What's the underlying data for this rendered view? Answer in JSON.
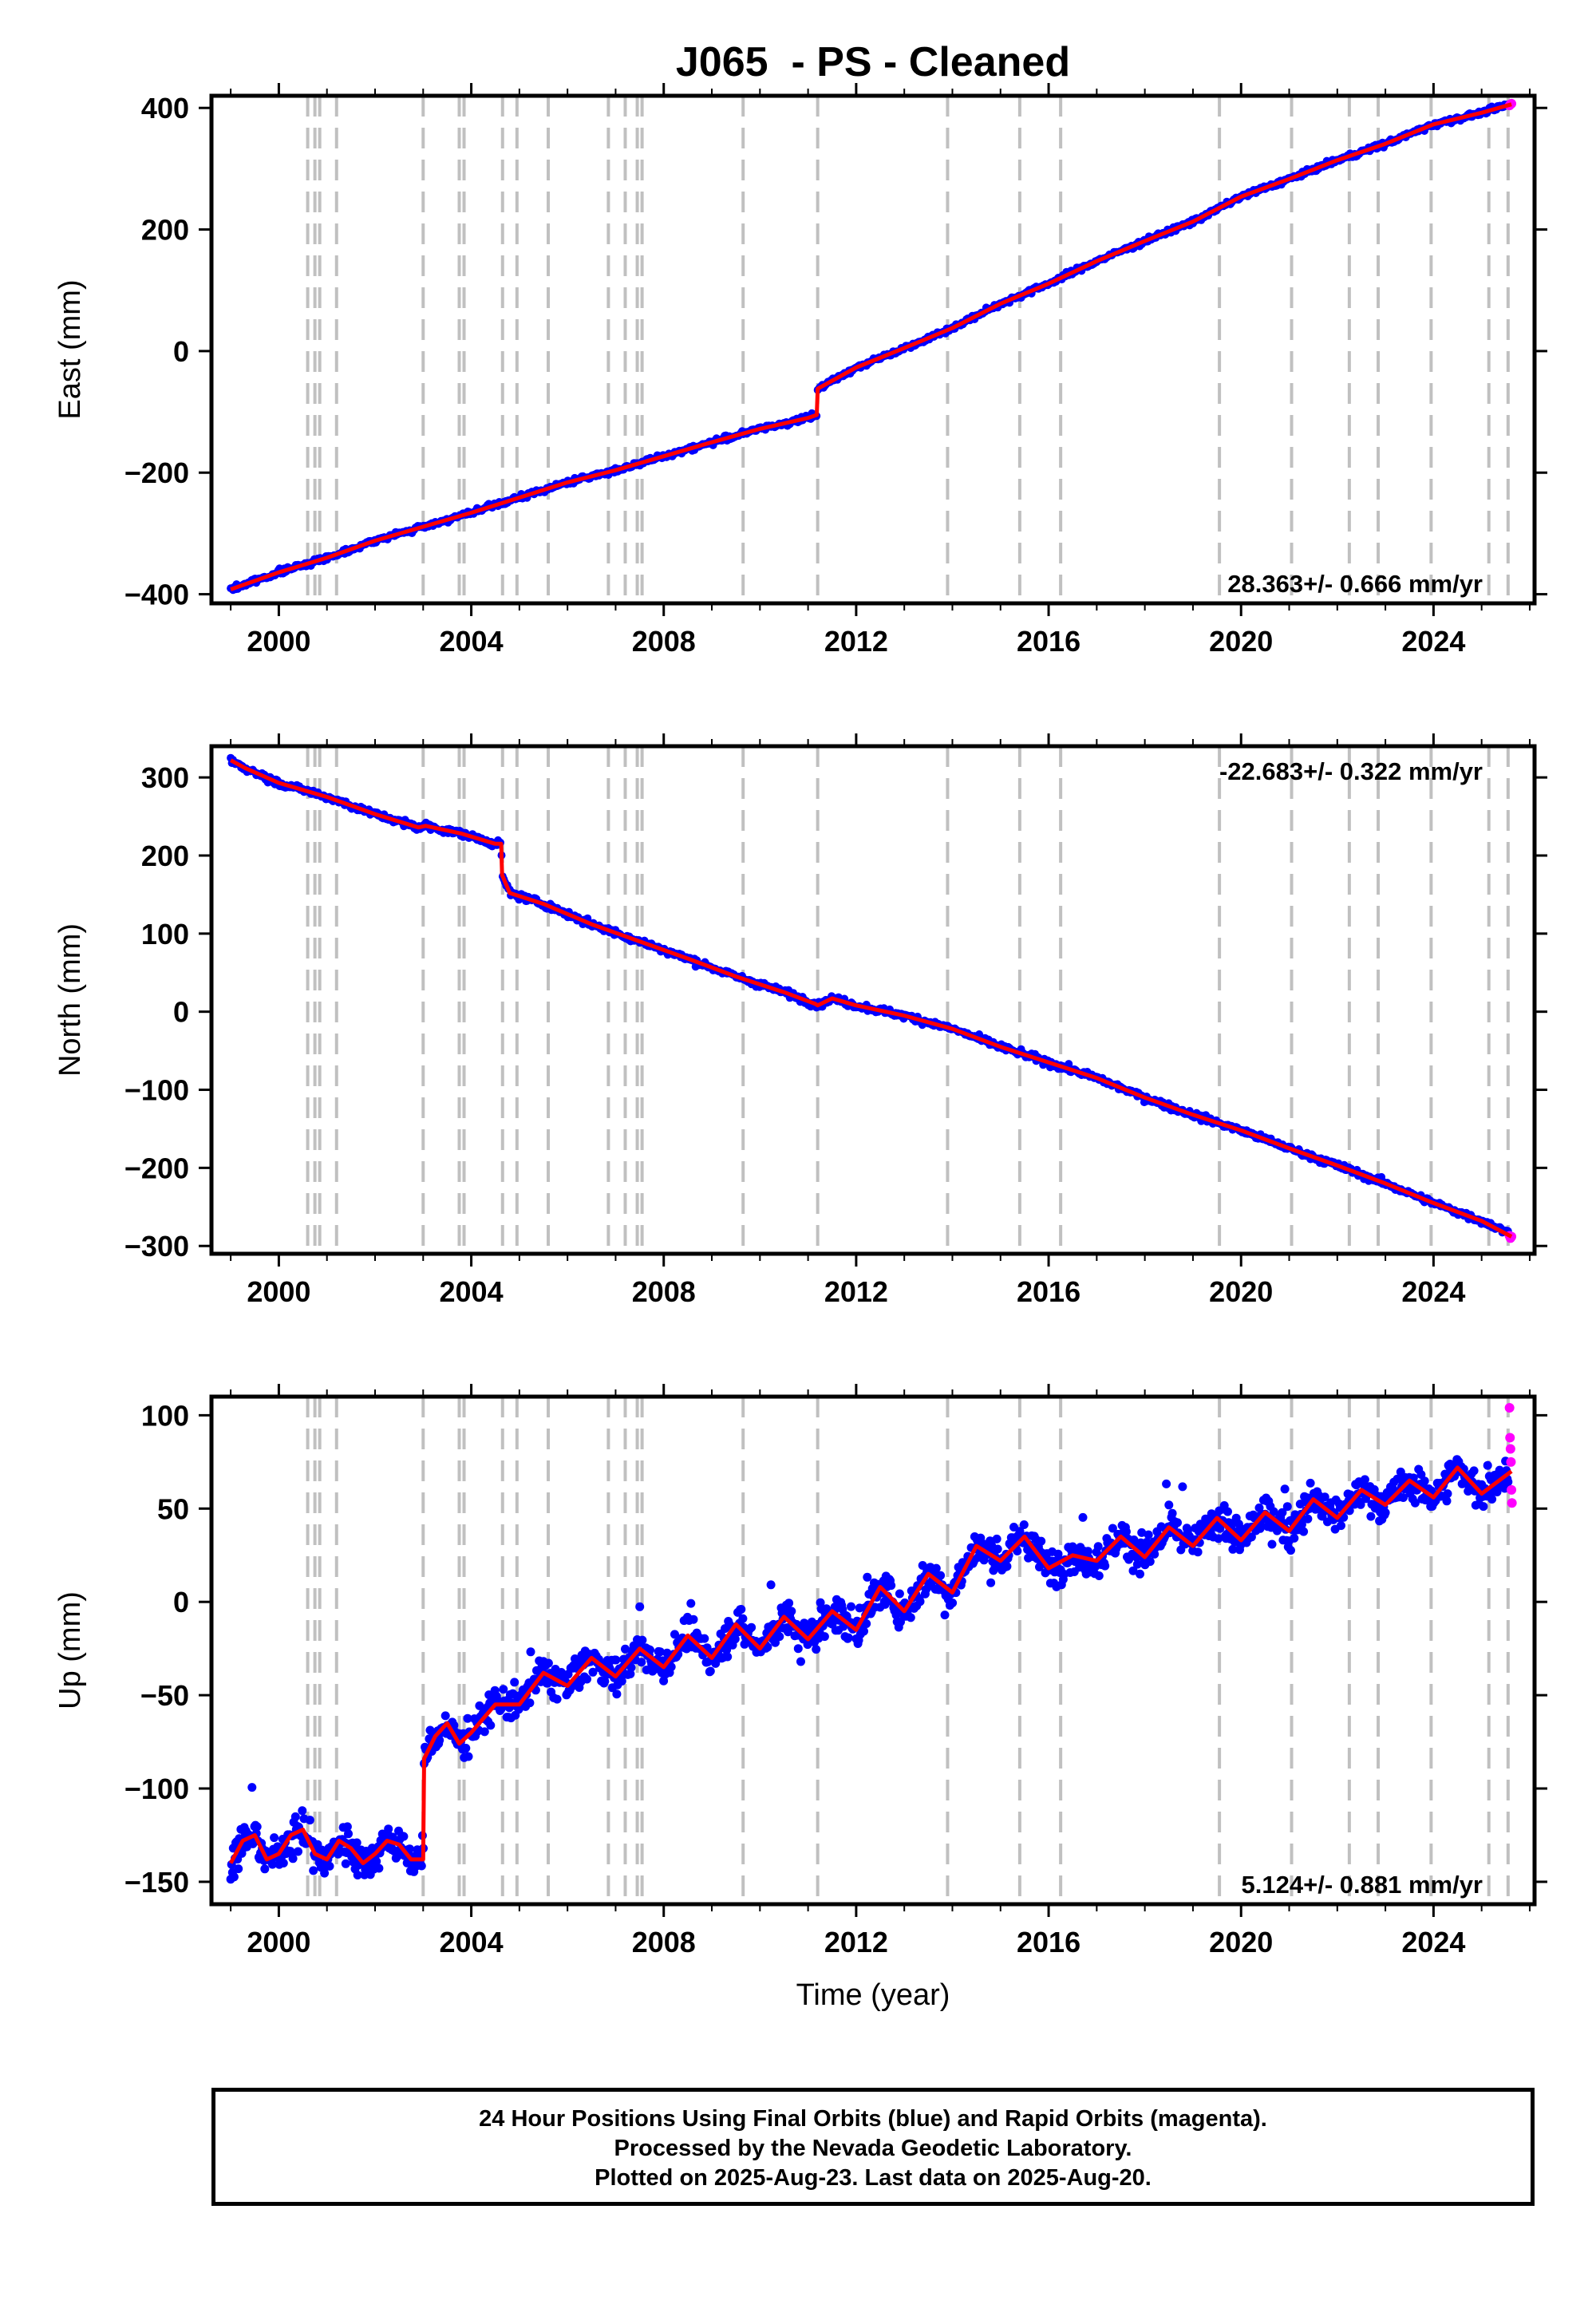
{
  "title": "J065  - PS - Cleaned",
  "xlabel": "Time (year)",
  "footer": {
    "line1": "24 Hour Positions Using Final Orbits (blue) and Rapid Orbits (magenta).",
    "line2": "Processed by the Nevada Geodetic Laboratory.",
    "line3": "Plotted on 2025-Aug-23. Last data on 2025-Aug-20."
  },
  "colors": {
    "final": "#0000ff",
    "rapid": "#ff00ff",
    "model": "#ff0000",
    "events": "#c0c0c0"
  },
  "chart_data": [
    {
      "type": "scatter",
      "component": "east",
      "ylabel": "East (mm)",
      "rate": "28.363+/- 0.666 mm/yr",
      "rate_position": "bottom-right",
      "xlim": [
        1998.6,
        2026.1
      ],
      "ylim": [
        -415,
        420
      ],
      "xticks": [
        2000,
        2004,
        2008,
        2012,
        2016,
        2020,
        2024
      ],
      "yticks": [
        -400,
        -200,
        0,
        200,
        400
      ],
      "ytick_labels": [
        "−400",
        "−200",
        "0",
        "200",
        "400"
      ],
      "series": [
        {
          "role": "final",
          "x": [
            1999.0,
            2000.0,
            2001.0,
            2002.0,
            2003.0,
            2004.0,
            2005.0,
            2006.0,
            2007.0,
            2008.0,
            2009.0,
            2010.0,
            2011.0,
            2011.18,
            2011.2,
            2012.0,
            2013.0,
            2014.0,
            2015.0,
            2016.0,
            2017.0,
            2018.0,
            2019.0,
            2020.0,
            2021.0,
            2022.0,
            2023.0,
            2024.0,
            2025.0,
            2025.55
          ],
          "y": [
            -392,
            -364,
            -340,
            -312,
            -289,
            -266,
            -241,
            -216,
            -196,
            -173,
            -150,
            -128,
            -110,
            -105,
            -62,
            -27,
            5,
            38,
            78,
            111,
            148,
            181,
            213,
            254,
            283,
            314,
            341,
            373,
            392,
            405
          ]
        },
        {
          "role": "rapid",
          "x": [
            2025.58,
            2025.6,
            2025.62
          ],
          "y": [
            404,
            406,
            407
          ]
        }
      ],
      "model": {
        "x": [
          1999.0,
          2000.0,
          2001.0,
          2002.0,
          2003.0,
          2004.0,
          2005.0,
          2006.0,
          2007.0,
          2008.0,
          2009.0,
          2010.0,
          2011.0,
          2011.18,
          2011.2,
          2012.0,
          2013.0,
          2014.0,
          2015.0,
          2016.0,
          2017.0,
          2018.0,
          2019.0,
          2020.0,
          2021.0,
          2022.0,
          2023.0,
          2024.0,
          2025.0,
          2025.62
        ],
        "y": [
          -392,
          -364,
          -340,
          -312,
          -289,
          -266,
          -241,
          -216,
          -196,
          -173,
          -150,
          -128,
          -110,
          -105,
          -62,
          -27,
          5,
          38,
          78,
          111,
          148,
          181,
          213,
          254,
          283,
          314,
          341,
          373,
          392,
          406
        ]
      }
    },
    {
      "type": "scatter",
      "component": "north",
      "ylabel": "North (mm)",
      "rate": "-22.683+/- 0.322 mm/yr",
      "rate_position": "top-right",
      "xlim": [
        1998.6,
        2026.1
      ],
      "ylim": [
        -310,
        340
      ],
      "xticks": [
        2000,
        2004,
        2008,
        2012,
        2016,
        2020,
        2024
      ],
      "yticks": [
        -300,
        -200,
        -100,
        0,
        100,
        200,
        300
      ],
      "ytick_labels": [
        "−300",
        "−200",
        "−100",
        "0",
        "100",
        "200",
        "300"
      ],
      "series": [
        {
          "role": "final",
          "x": [
            1999.0,
            1999.3,
            2000.0,
            2001.0,
            2002.0,
            2002.9,
            2003.05,
            2003.8,
            2004.5,
            2004.62,
            2004.64,
            2004.8,
            2005.5,
            2006.5,
            2007.5,
            2008.5,
            2009.5,
            2010.5,
            2011.15,
            2011.2,
            2011.5,
            2012.0,
            2013.0,
            2014.0,
            2015.0,
            2016.0,
            2017.0,
            2018.0,
            2019.0,
            2020.0,
            2021.0,
            2022.0,
            2023.0,
            2024.0,
            2025.0,
            2025.55
          ],
          "y": [
            322,
            312,
            293,
            275,
            253,
            236,
            238,
            228,
            215,
            215,
            175,
            152,
            138,
            112,
            90,
            68,
            45,
            25,
            10,
            8,
            17,
            8,
            -5,
            -22,
            -45,
            -65,
            -85,
            -110,
            -132,
            -152,
            -175,
            -197,
            -220,
            -245,
            -268,
            -283
          ]
        },
        {
          "role": "rapid",
          "x": [
            2025.58,
            2025.6,
            2025.62
          ],
          "y": [
            -287,
            -290,
            -288
          ]
        }
      ],
      "model": {
        "x": [
          1999.0,
          1999.3,
          2000.0,
          2001.0,
          2002.0,
          2002.9,
          2003.05,
          2003.8,
          2004.5,
          2004.62,
          2004.64,
          2004.8,
          2005.5,
          2006.5,
          2007.5,
          2008.5,
          2009.5,
          2010.5,
          2011.15,
          2011.2,
          2011.5,
          2012.0,
          2013.0,
          2014.0,
          2015.0,
          2016.0,
          2017.0,
          2018.0,
          2019.0,
          2020.0,
          2021.0,
          2022.0,
          2023.0,
          2024.0,
          2025.0,
          2025.62
        ],
        "y": [
          322,
          312,
          293,
          275,
          253,
          236,
          238,
          228,
          215,
          215,
          175,
          152,
          138,
          112,
          90,
          68,
          45,
          25,
          10,
          8,
          17,
          8,
          -5,
          -22,
          -45,
          -65,
          -85,
          -110,
          -132,
          -152,
          -175,
          -197,
          -220,
          -245,
          -268,
          -288
        ]
      }
    },
    {
      "type": "scatter",
      "component": "up",
      "ylabel": "Up (mm)",
      "rate": "5.124+/- 0.881 mm/yr",
      "rate_position": "bottom-right",
      "xlim": [
        1998.6,
        2026.1
      ],
      "ylim": [
        -162,
        110
      ],
      "xticks": [
        2000,
        2004,
        2008,
        2012,
        2016,
        2020,
        2024
      ],
      "yticks": [
        -150,
        -100,
        -50,
        0,
        50,
        100
      ],
      "ytick_labels": [
        "−150",
        "−100",
        "−50",
        "0",
        "50",
        "100"
      ],
      "series": [
        {
          "role": "final",
          "x": [
            1999.0,
            1999.25,
            1999.5,
            1999.75,
            2000.0,
            2000.25,
            2000.5,
            2000.75,
            2001.0,
            2001.25,
            2001.5,
            2001.75,
            2002.0,
            2002.25,
            2002.5,
            2002.75,
            2003.0,
            2003.02,
            2003.25,
            2003.5,
            2003.75,
            2004.0,
            2004.5,
            2005.0,
            2005.5,
            2006.0,
            2006.5,
            2007.0,
            2007.5,
            2008.0,
            2008.5,
            2009.0,
            2009.5,
            2010.0,
            2010.5,
            2011.0,
            2011.5,
            2012.0,
            2012.5,
            2013.0,
            2013.5,
            2014.0,
            2014.5,
            2015.0,
            2015.5,
            2016.0,
            2016.5,
            2017.0,
            2017.5,
            2018.0,
            2018.5,
            2019.0,
            2019.5,
            2020.0,
            2020.5,
            2021.0,
            2021.5,
            2022.0,
            2022.5,
            2023.0,
            2023.5,
            2024.0,
            2024.5,
            2025.0,
            2025.55
          ],
          "y": [
            -140,
            -128,
            -125,
            -138,
            -135,
            -125,
            -122,
            -135,
            -138,
            -128,
            -132,
            -140,
            -135,
            -128,
            -130,
            -138,
            -138,
            -84,
            -72,
            -65,
            -76,
            -70,
            -55,
            -55,
            -38,
            -45,
            -30,
            -40,
            -25,
            -35,
            -18,
            -30,
            -12,
            -25,
            -8,
            -20,
            -5,
            -15,
            8,
            -5,
            15,
            5,
            30,
            22,
            35,
            18,
            25,
            22,
            35,
            24,
            40,
            30,
            45,
            33,
            48,
            38,
            55,
            45,
            60,
            52,
            65,
            56,
            72,
            58,
            70
          ]
        },
        {
          "role": "rapid",
          "x": [
            2025.58,
            2025.59,
            2025.6,
            2025.61,
            2025.62,
            2025.63
          ],
          "y": [
            104,
            88,
            82,
            75,
            60,
            53
          ]
        }
      ],
      "model": {
        "x": [
          1999.0,
          1999.25,
          1999.5,
          1999.75,
          2000.0,
          2000.25,
          2000.5,
          2000.75,
          2001.0,
          2001.25,
          2001.5,
          2001.75,
          2002.0,
          2002.25,
          2002.5,
          2002.75,
          2003.0,
          2003.02,
          2003.25,
          2003.5,
          2003.75,
          2004.0,
          2004.5,
          2005.0,
          2005.5,
          2006.0,
          2006.5,
          2007.0,
          2007.5,
          2008.0,
          2008.5,
          2009.0,
          2009.5,
          2010.0,
          2010.5,
          2011.0,
          2011.5,
          2012.0,
          2012.5,
          2013.0,
          2013.5,
          2014.0,
          2014.5,
          2015.0,
          2015.5,
          2016.0,
          2016.5,
          2017.0,
          2017.5,
          2018.0,
          2018.5,
          2019.0,
          2019.5,
          2020.0,
          2020.5,
          2021.0,
          2021.5,
          2022.0,
          2022.5,
          2023.0,
          2023.5,
          2024.0,
          2024.5,
          2025.0,
          2025.62
        ],
        "y": [
          -140,
          -128,
          -125,
          -138,
          -135,
          -125,
          -122,
          -135,
          -138,
          -128,
          -132,
          -140,
          -135,
          -128,
          -130,
          -138,
          -138,
          -84,
          -72,
          -65,
          -76,
          -70,
          -55,
          -55,
          -38,
          -45,
          -30,
          -40,
          -25,
          -35,
          -18,
          -30,
          -12,
          -25,
          -8,
          -20,
          -5,
          -15,
          8,
          -5,
          15,
          5,
          30,
          22,
          35,
          18,
          25,
          22,
          35,
          24,
          40,
          30,
          45,
          33,
          48,
          38,
          55,
          45,
          60,
          52,
          65,
          56,
          72,
          58,
          70
        ]
      }
    }
  ],
  "event_lines": [
    2000.6,
    2000.75,
    2000.85,
    2001.2,
    2003.0,
    2003.75,
    2003.85,
    2004.65,
    2004.95,
    2005.6,
    2006.85,
    2007.2,
    2007.45,
    2007.55,
    2009.65,
    2011.2,
    2013.9,
    2015.4,
    2016.25,
    2019.55,
    2021.05,
    2022.25,
    2022.85,
    2023.95,
    2025.15,
    2025.55
  ]
}
